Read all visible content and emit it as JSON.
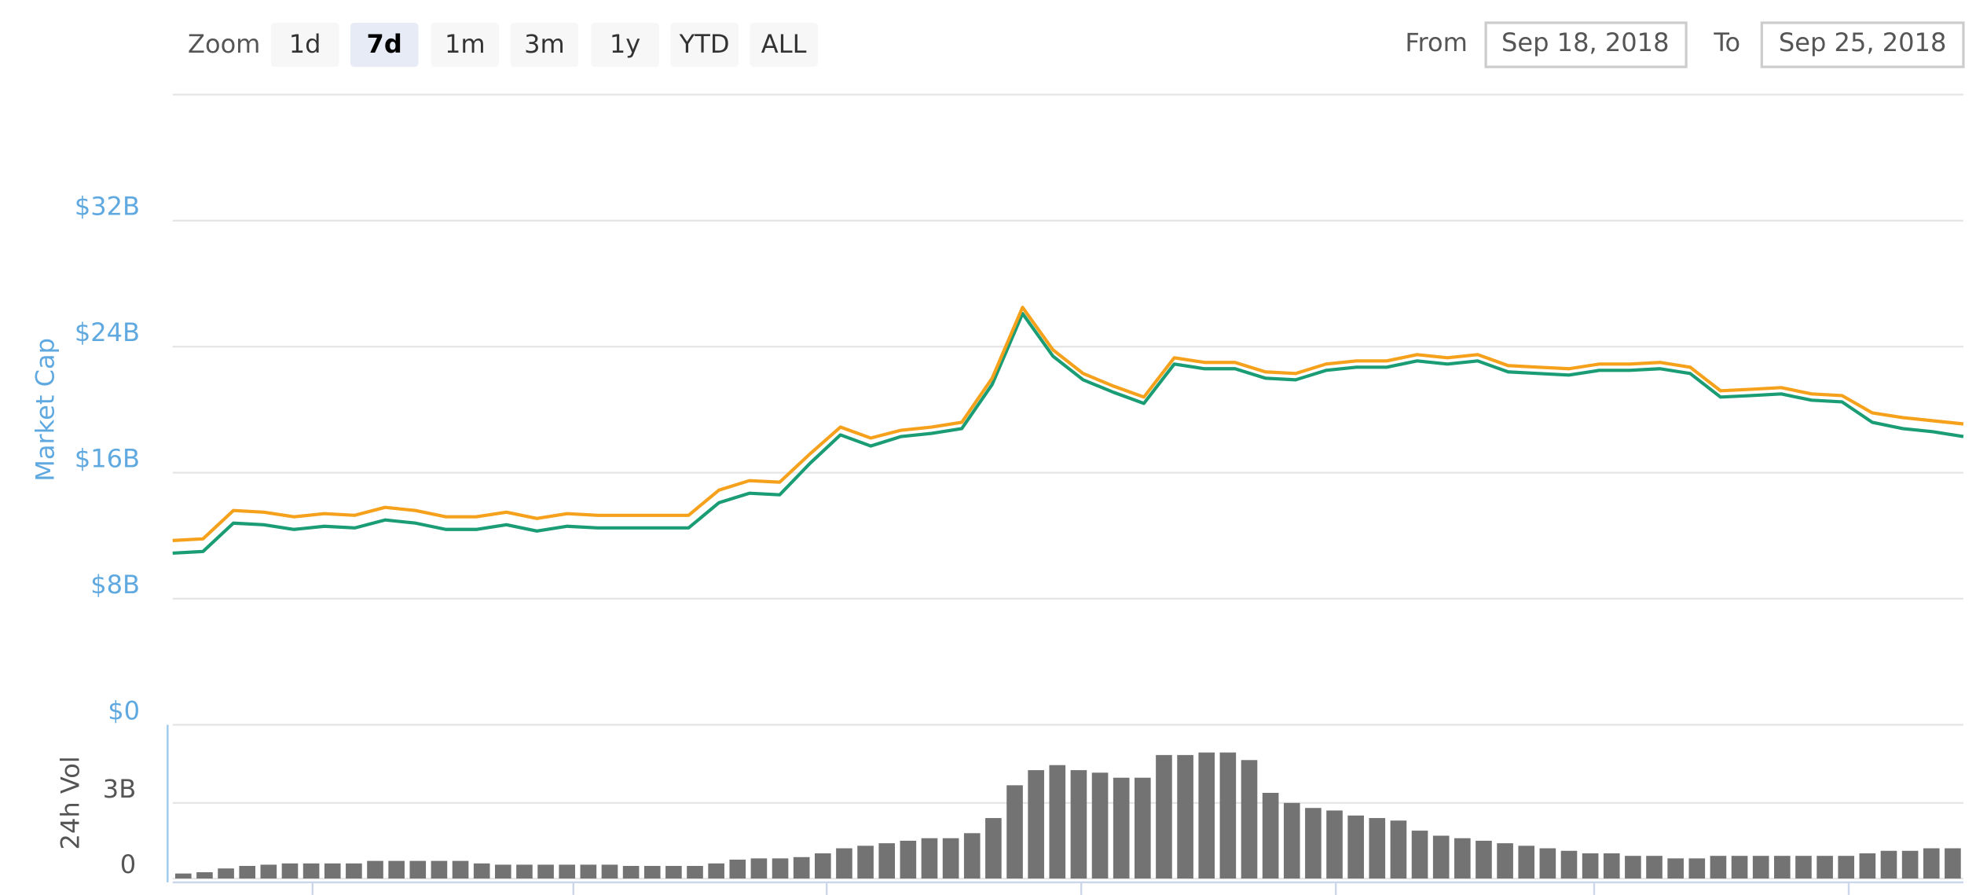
{
  "range_selector": {
    "zoom_label": "Zoom",
    "buttons": [
      "1d",
      "7d",
      "1m",
      "3m",
      "1y",
      "YTD",
      "ALL"
    ],
    "active": 1,
    "from_label": "From",
    "from": "Sep 18, 2018",
    "to_label": "To",
    "to": "Sep 25, 2018"
  },
  "chart_data": [
    {
      "type": "line",
      "y_label": "Market Cap",
      "ylim": [
        0,
        40
      ],
      "yticks": [
        {
          "value": 0,
          "label": "$0"
        },
        {
          "value": 8,
          "label": "$8B"
        },
        {
          "value": 16,
          "label": "$16B"
        },
        {
          "value": 24,
          "label": "$24B"
        },
        {
          "value": 32,
          "label": "$32B"
        }
      ],
      "grid": true,
      "series": [
        {
          "color": "#1a9c74",
          "values": [
            10.9,
            11.0,
            12.8,
            12.7,
            12.4,
            12.6,
            12.5,
            13.0,
            12.8,
            12.4,
            12.4,
            12.7,
            12.3,
            12.6,
            12.5,
            12.5,
            12.5,
            12.5,
            14.1,
            14.7,
            14.6,
            16.6,
            18.4,
            17.7,
            18.3,
            18.5,
            18.8,
            21.6,
            26.1,
            23.4,
            21.9,
            21.1,
            20.4,
            22.9,
            22.6,
            22.6,
            22.0,
            21.9,
            22.5,
            22.7,
            22.7,
            23.1,
            22.9,
            23.1,
            22.4,
            22.3,
            22.2,
            22.5,
            22.5,
            22.6,
            22.3,
            20.8,
            20.9,
            21.0,
            20.6,
            20.5,
            19.2,
            18.8,
            18.6,
            18.3
          ]
        },
        {
          "color": "#f5a11c",
          "values": [
            11.7,
            11.8,
            13.6,
            13.5,
            13.2,
            13.4,
            13.3,
            13.8,
            13.6,
            13.2,
            13.2,
            13.5,
            13.1,
            13.4,
            13.3,
            13.3,
            13.3,
            13.3,
            14.9,
            15.5,
            15.4,
            17.2,
            18.9,
            18.2,
            18.7,
            18.9,
            19.2,
            22.0,
            26.5,
            23.8,
            22.3,
            21.5,
            20.8,
            23.3,
            23.0,
            23.0,
            22.4,
            22.3,
            22.9,
            23.1,
            23.1,
            23.5,
            23.3,
            23.5,
            22.8,
            22.7,
            22.6,
            22.9,
            22.9,
            23.0,
            22.7,
            21.2,
            21.3,
            21.4,
            21.0,
            20.9,
            19.8,
            19.5,
            19.3,
            19.1
          ]
        }
      ]
    },
    {
      "type": "bar",
      "y_label": "24h Vol",
      "color": "#737373",
      "ylim": [
        0,
        6
      ],
      "yticks": [
        0,
        {
          "value": 3,
          "label": "3B"
        }
      ],
      "grid": true,
      "values": [
        0.2,
        0.25,
        0.4,
        0.5,
        0.55,
        0.6,
        0.6,
        0.6,
        0.6,
        0.7,
        0.7,
        0.7,
        0.7,
        0.7,
        0.6,
        0.55,
        0.55,
        0.55,
        0.55,
        0.55,
        0.55,
        0.5,
        0.5,
        0.5,
        0.5,
        0.6,
        0.75,
        0.8,
        0.8,
        0.85,
        1.0,
        1.2,
        1.3,
        1.4,
        1.5,
        1.6,
        1.6,
        1.8,
        2.4,
        3.7,
        4.3,
        4.5,
        4.3,
        4.2,
        4.0,
        4.0,
        4.9,
        4.9,
        5.0,
        5.0,
        4.7,
        3.4,
        3.0,
        2.8,
        2.7,
        2.5,
        2.4,
        2.3,
        1.9,
        1.7,
        1.6,
        1.5,
        1.4,
        1.3,
        1.2,
        1.1,
        1.0,
        1.0,
        0.9,
        0.9,
        0.8,
        0.8,
        0.9,
        0.9,
        0.9,
        0.9,
        0.9,
        0.9,
        0.9,
        1.0,
        1.1,
        1.1,
        1.2,
        1.2
      ]
    }
  ]
}
